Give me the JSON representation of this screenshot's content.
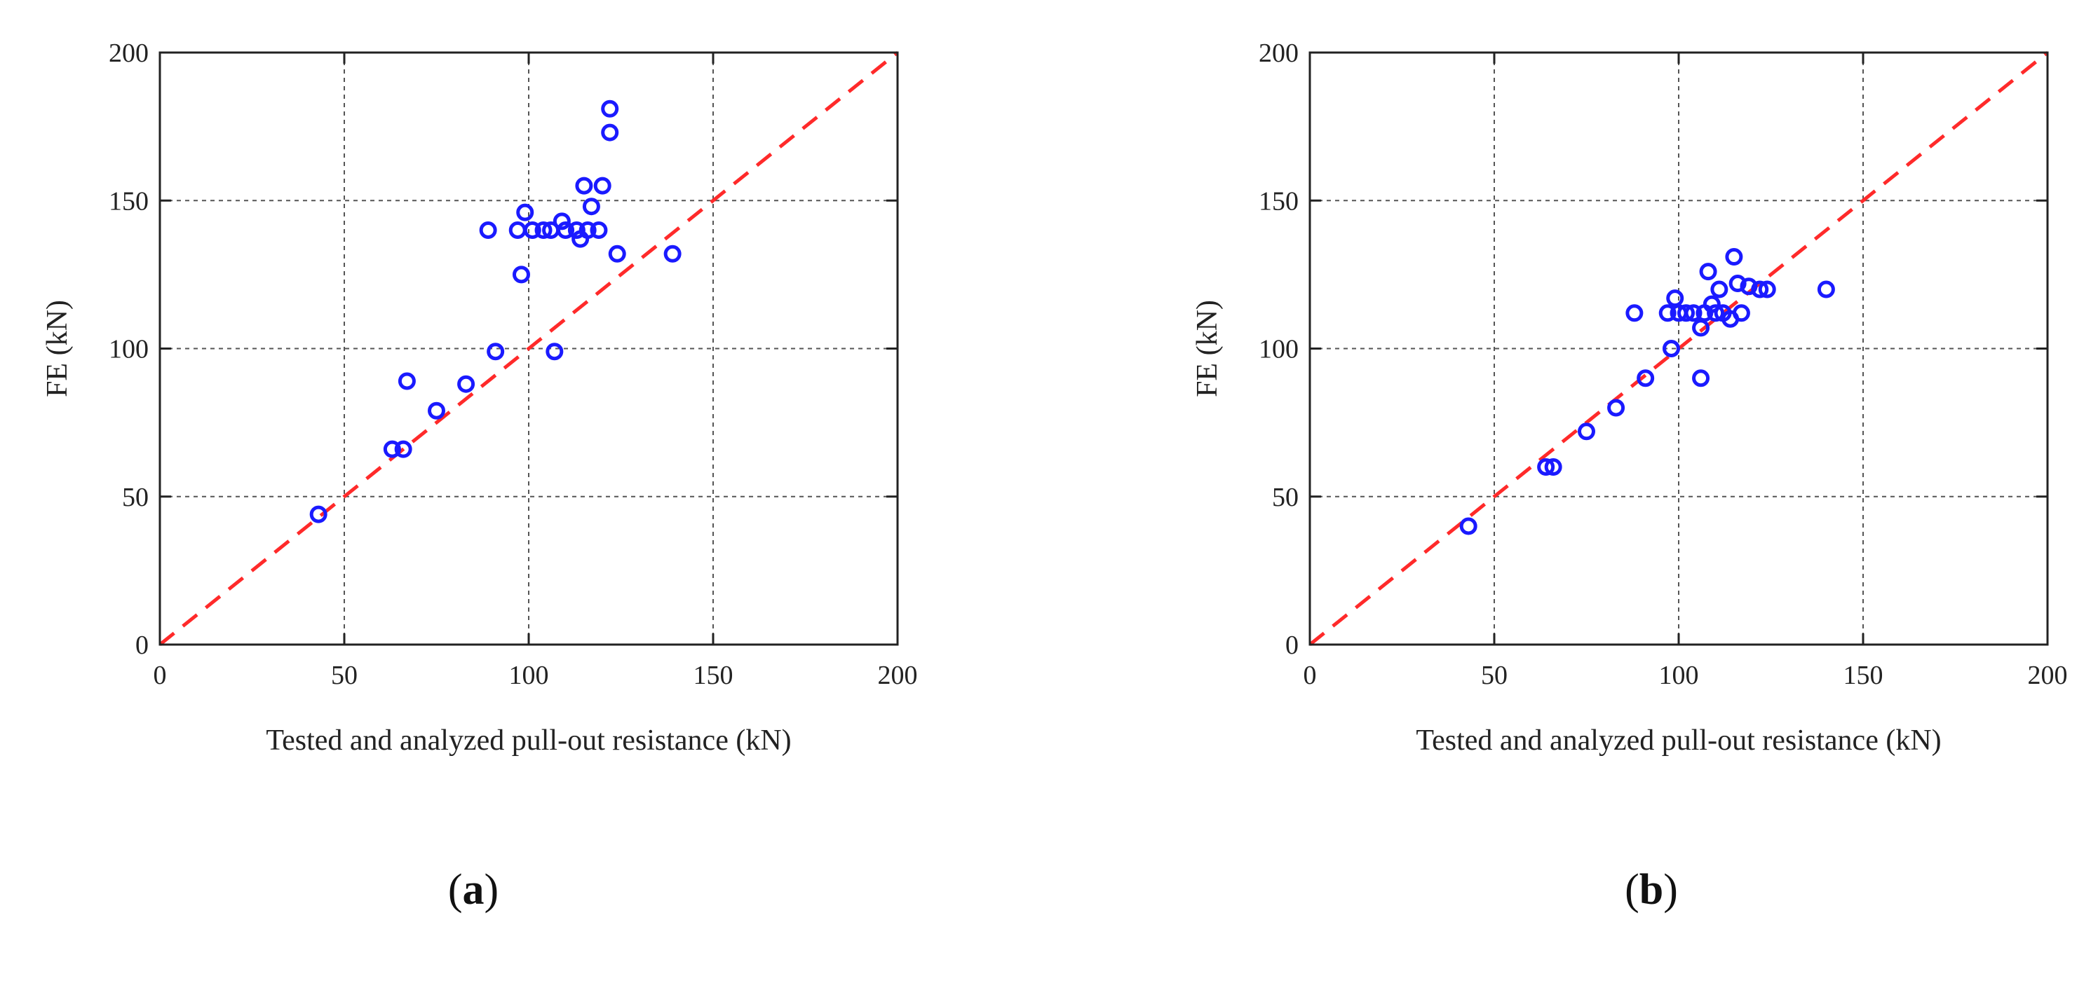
{
  "chart_data": [
    {
      "type": "scatter",
      "xlabel": "Tested and analyzed pull-out resistance (kN)",
      "ylabel": "FE (kN)",
      "xlim": [
        0,
        200
      ],
      "ylim": [
        0,
        200
      ],
      "xticks": [
        0,
        50,
        100,
        150,
        200
      ],
      "yticks": [
        0,
        50,
        100,
        150,
        200
      ],
      "grid": true,
      "reference_line": {
        "style": "dashed",
        "color": "#ff2a2a",
        "from": [
          0,
          0
        ],
        "to": [
          200,
          200
        ]
      },
      "marker_color": "#1a1aff",
      "points": [
        [
          43,
          44
        ],
        [
          63,
          66
        ],
        [
          66,
          66
        ],
        [
          67,
          89
        ],
        [
          75,
          79
        ],
        [
          83,
          88
        ],
        [
          89,
          140
        ],
        [
          91,
          99
        ],
        [
          97,
          140
        ],
        [
          98,
          125
        ],
        [
          99,
          146
        ],
        [
          101,
          140
        ],
        [
          104,
          140
        ],
        [
          106,
          140
        ],
        [
          107,
          99
        ],
        [
          109,
          143
        ],
        [
          110,
          140
        ],
        [
          113,
          140
        ],
        [
          114,
          137
        ],
        [
          115,
          155
        ],
        [
          116,
          140
        ],
        [
          117,
          148
        ],
        [
          119,
          140
        ],
        [
          120,
          155
        ],
        [
          122,
          181
        ],
        [
          122,
          173
        ],
        [
          124,
          132
        ],
        [
          139,
          132
        ]
      ],
      "caption_letter": "a"
    },
    {
      "type": "scatter",
      "xlabel": "Tested and analyzed pull-out resistance (kN)",
      "ylabel": "FE (kN)",
      "xlim": [
        0,
        200
      ],
      "ylim": [
        0,
        200
      ],
      "xticks": [
        0,
        50,
        100,
        150,
        200
      ],
      "yticks": [
        0,
        50,
        100,
        150,
        200
      ],
      "grid": true,
      "reference_line": {
        "style": "dashed",
        "color": "#ff2a2a",
        "from": [
          0,
          0
        ],
        "to": [
          200,
          200
        ]
      },
      "marker_color": "#1a1aff",
      "points": [
        [
          43,
          40
        ],
        [
          64,
          60
        ],
        [
          66,
          60
        ],
        [
          75,
          72
        ],
        [
          83,
          80
        ],
        [
          88,
          112
        ],
        [
          91,
          90
        ],
        [
          97,
          112
        ],
        [
          98,
          100
        ],
        [
          99,
          117
        ],
        [
          100,
          112
        ],
        [
          102,
          112
        ],
        [
          104,
          112
        ],
        [
          106,
          107
        ],
        [
          106,
          90
        ],
        [
          107,
          112
        ],
        [
          108,
          126
        ],
        [
          109,
          115
        ],
        [
          110,
          112
        ],
        [
          111,
          120
        ],
        [
          112,
          112
        ],
        [
          114,
          110
        ],
        [
          115,
          131
        ],
        [
          116,
          122
        ],
        [
          117,
          112
        ],
        [
          119,
          121
        ],
        [
          122,
          120
        ],
        [
          124,
          120
        ],
        [
          140,
          120
        ]
      ],
      "caption_letter": "b"
    }
  ]
}
